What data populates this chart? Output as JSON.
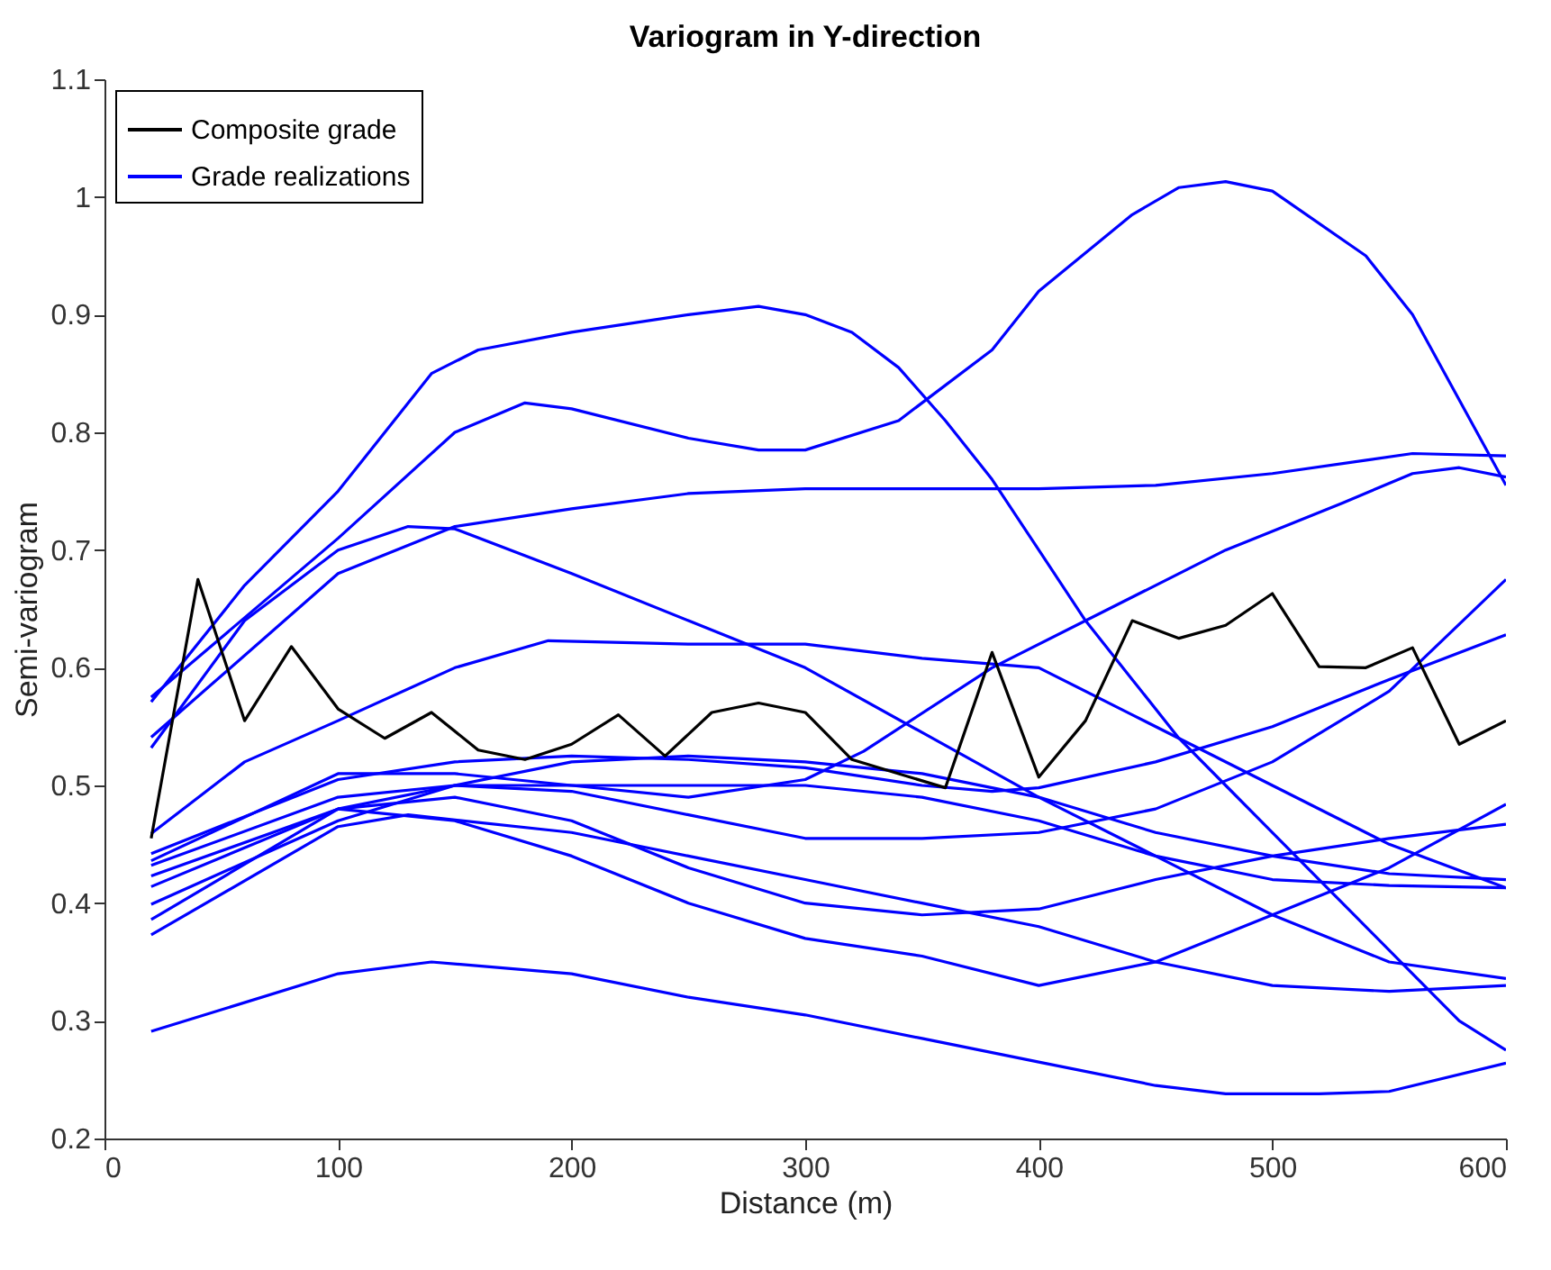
{
  "chart_data": {
    "type": "line",
    "title": "Variogram in Y-direction",
    "xlabel": "Distance (m)",
    "ylabel": "Semi-variogram",
    "xlim": [
      0,
      600
    ],
    "xticks": [
      0,
      100,
      200,
      300,
      400,
      500,
      600
    ],
    "ylim": [
      0.2,
      1.1
    ],
    "yticks": [
      0.2,
      0.3,
      0.4,
      0.5,
      0.6,
      0.7,
      0.8,
      0.9,
      1,
      1.1
    ],
    "legend": "top left",
    "grid": false,
    "series": [
      {
        "name": "Composite grade",
        "color": "#000000",
        "x": [
          20,
          40,
          60,
          80,
          100,
          120,
          140,
          160,
          180,
          200,
          220,
          240,
          260,
          280,
          300,
          320,
          340,
          360,
          380,
          400,
          420,
          440,
          460,
          480,
          500,
          520,
          540,
          560,
          580,
          600
        ],
        "values": [
          0.455,
          0.675,
          0.555,
          0.618,
          0.565,
          0.54,
          0.562,
          0.53,
          0.522,
          0.535,
          0.56,
          0.525,
          0.562,
          0.57,
          0.562,
          0.522,
          0.51,
          0.498,
          0.613,
          0.507,
          0.555,
          0.64,
          0.625,
          0.636,
          0.663,
          0.601,
          0.6,
          0.617,
          0.535,
          0.555
        ]
      },
      {
        "name": "Grade realizations",
        "color": "#0000ff",
        "x": [
          20,
          60,
          100,
          140,
          160,
          200,
          250,
          280,
          300,
          320,
          340,
          360,
          380,
          400,
          420,
          440,
          460,
          480,
          500,
          520,
          540,
          560,
          580,
          600
        ],
        "values": [
          0.571,
          0.67,
          0.75,
          0.85,
          0.87,
          0.885,
          0.9,
          0.907,
          0.9,
          0.885,
          0.855,
          0.81,
          0.76,
          0.7,
          0.64,
          0.59,
          0.54,
          0.5,
          0.46,
          0.42,
          0.38,
          0.34,
          0.3,
          0.275
        ]
      },
      {
        "color": "#0000ff",
        "x": [
          20,
          100,
          150,
          180,
          200,
          250,
          280,
          300,
          340,
          380,
          400,
          440,
          460,
          480,
          500,
          540,
          560,
          600
        ],
        "values": [
          0.575,
          0.71,
          0.8,
          0.825,
          0.82,
          0.795,
          0.785,
          0.785,
          0.81,
          0.87,
          0.92,
          0.985,
          1.008,
          1.013,
          1.005,
          0.95,
          0.9,
          0.755
        ]
      },
      {
        "color": "#0000ff",
        "x": [
          20,
          100,
          150,
          200,
          250,
          300,
          350,
          400,
          450,
          500,
          560,
          600
        ],
        "values": [
          0.541,
          0.68,
          0.72,
          0.735,
          0.748,
          0.752,
          0.752,
          0.752,
          0.755,
          0.765,
          0.782,
          0.78
        ]
      },
      {
        "color": "#0000ff",
        "x": [
          20,
          60,
          100,
          130,
          150,
          200,
          250,
          300,
          350,
          400,
          450,
          500,
          550,
          600
        ],
        "values": [
          0.532,
          0.64,
          0.7,
          0.72,
          0.718,
          0.68,
          0.64,
          0.6,
          0.545,
          0.49,
          0.44,
          0.39,
          0.35,
          0.336
        ]
      },
      {
        "color": "#0000ff",
        "x": [
          20,
          100,
          150,
          200,
          250,
          300,
          325,
          380,
          430,
          480,
          530,
          560,
          580,
          600
        ],
        "values": [
          0.436,
          0.51,
          0.51,
          0.5,
          0.49,
          0.505,
          0.529,
          0.6,
          0.65,
          0.7,
          0.74,
          0.765,
          0.77,
          0.762
        ]
      },
      {
        "color": "#0000ff",
        "x": [
          20,
          60,
          100,
          150,
          190,
          250,
          300,
          350,
          400,
          440,
          500,
          550,
          600
        ],
        "values": [
          0.459,
          0.52,
          0.555,
          0.6,
          0.623,
          0.62,
          0.62,
          0.608,
          0.6,
          0.56,
          0.5,
          0.45,
          0.413
        ]
      },
      {
        "color": "#0000ff",
        "x": [
          20,
          100,
          150,
          200,
          250,
          300,
          350,
          380,
          400,
          450,
          500,
          550,
          600
        ],
        "values": [
          0.442,
          0.505,
          0.52,
          0.525,
          0.522,
          0.515,
          0.5,
          0.495,
          0.498,
          0.52,
          0.55,
          0.59,
          0.628
        ]
      },
      {
        "color": "#0000ff",
        "x": [
          20,
          100,
          150,
          200,
          250,
          300,
          350,
          400,
          450,
          500,
          550,
          600
        ],
        "values": [
          0.432,
          0.49,
          0.5,
          0.495,
          0.475,
          0.455,
          0.455,
          0.46,
          0.48,
          0.52,
          0.58,
          0.675
        ]
      },
      {
        "color": "#0000ff",
        "x": [
          20,
          100,
          150,
          200,
          250,
          300,
          350,
          400,
          450,
          500,
          550,
          600
        ],
        "values": [
          0.423,
          0.48,
          0.47,
          0.44,
          0.4,
          0.37,
          0.355,
          0.33,
          0.35,
          0.39,
          0.43,
          0.484
        ]
      },
      {
        "color": "#0000ff",
        "x": [
          20,
          100,
          150,
          200,
          250,
          300,
          350,
          400,
          450,
          500,
          550,
          600
        ],
        "values": [
          0.414,
          0.48,
          0.49,
          0.47,
          0.43,
          0.4,
          0.39,
          0.395,
          0.42,
          0.44,
          0.455,
          0.467
        ]
      },
      {
        "color": "#0000ff",
        "x": [
          20,
          100,
          150,
          200,
          250,
          300,
          350,
          400,
          450,
          500,
          550,
          600
        ],
        "values": [
          0.399,
          0.47,
          0.5,
          0.52,
          0.525,
          0.52,
          0.51,
          0.49,
          0.46,
          0.44,
          0.425,
          0.42
        ]
      },
      {
        "color": "#0000ff",
        "x": [
          20,
          100,
          150,
          200,
          250,
          300,
          350,
          400,
          450,
          500,
          550,
          600
        ],
        "values": [
          0.386,
          0.48,
          0.5,
          0.5,
          0.5,
          0.5,
          0.49,
          0.47,
          0.44,
          0.42,
          0.415,
          0.413
        ]
      },
      {
        "color": "#0000ff",
        "x": [
          20,
          100,
          130,
          200,
          250,
          300,
          350,
          400,
          450,
          500,
          550,
          600
        ],
        "values": [
          0.373,
          0.465,
          0.475,
          0.46,
          0.44,
          0.42,
          0.4,
          0.38,
          0.35,
          0.33,
          0.325,
          0.33
        ]
      },
      {
        "color": "#0000ff",
        "x": [
          20,
          100,
          140,
          200,
          250,
          300,
          350,
          400,
          450,
          480,
          520,
          550,
          600
        ],
        "values": [
          0.291,
          0.34,
          0.35,
          0.34,
          0.32,
          0.305,
          0.285,
          0.265,
          0.245,
          0.238,
          0.238,
          0.24,
          0.264
        ]
      }
    ]
  }
}
